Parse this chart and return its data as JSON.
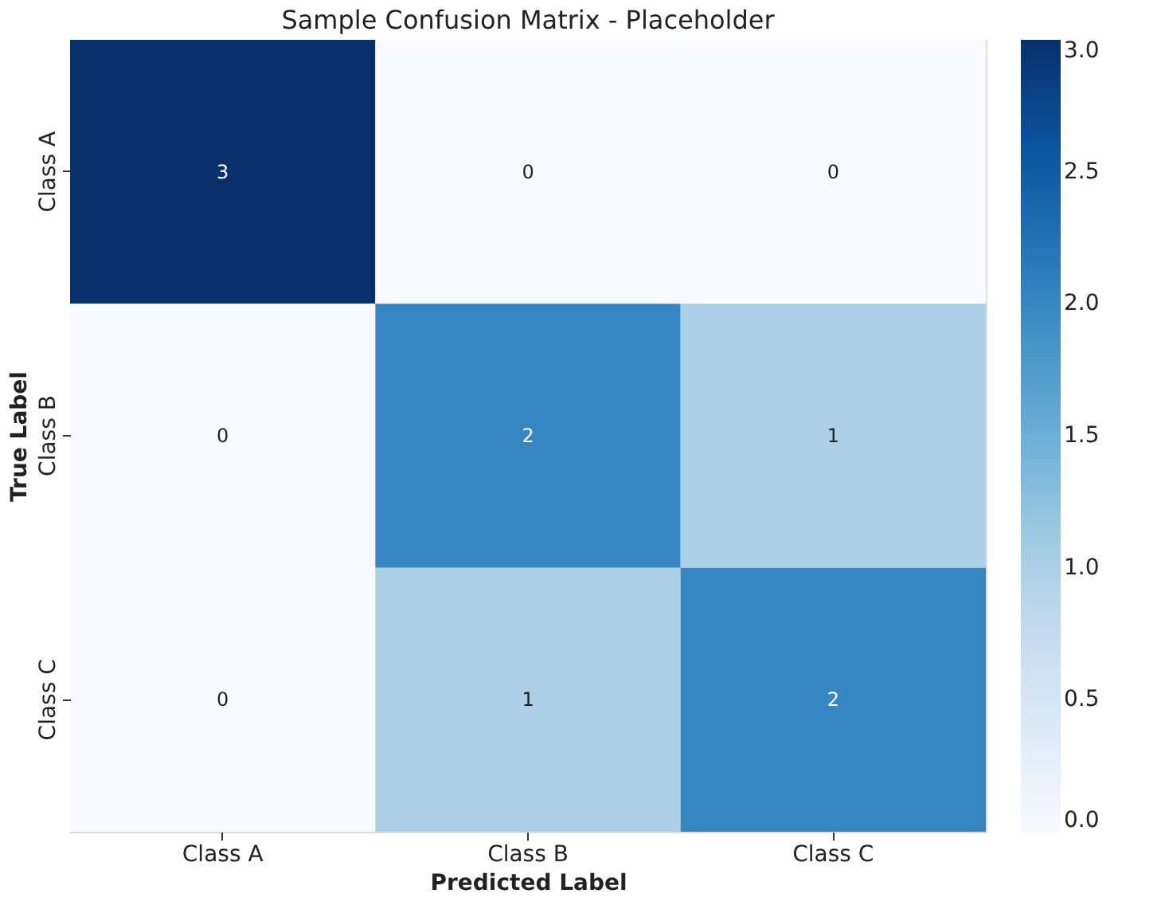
{
  "chart_data": {
    "type": "heatmap",
    "title": "Sample Confusion Matrix - Placeholder",
    "xlabel": "Predicted Label",
    "ylabel": "True Label",
    "categories": [
      "Class A",
      "Class B",
      "Class C"
    ],
    "y_categories": [
      "Class A",
      "Class B",
      "Class C"
    ],
    "cells": [
      [
        3,
        0,
        0
      ],
      [
        0,
        2,
        1
      ],
      [
        0,
        1,
        2
      ]
    ],
    "clim": [
      0,
      3
    ],
    "cticks": [
      {
        "value": 0,
        "label": "0.0"
      },
      {
        "value": 0.5,
        "label": "0.5"
      },
      {
        "value": 1,
        "label": "1.0"
      },
      {
        "value": 1.5,
        "label": "1.5"
      },
      {
        "value": 2,
        "label": "2.0"
      },
      {
        "value": 2.5,
        "label": "2.5"
      },
      {
        "value": 3,
        "label": "3.0"
      }
    ],
    "data_labels": true
  }
}
